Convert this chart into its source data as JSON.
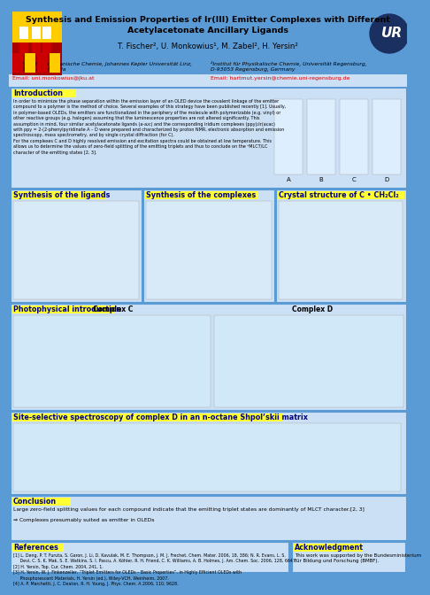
{
  "bg_color": "#5b9bd5",
  "panel_bg": "#cce0f5",
  "panel_bg2": "#ddeefa",
  "title_line1": "Synthesis and Emission Properties of Ir(III) Emitter Complexes with Different",
  "title_line2": "Acetylacetonate Ancillary Ligands",
  "authors": "T. Fischer², U. Monkowius¹, M. Zabel², H. Yersin²",
  "affil1a": "¹Institut für Anorganische Chemie, Johannes Kepler Universität Linz,",
  "affil1b": "A-4040 Linz, Austria",
  "affil2a": "²Institut für Physikalische Chemie, Universität Regensburg,",
  "affil2b": "D-93053 Regensburg, Germany",
  "email1": "Email: uni.monkowius@jku.at",
  "email2": "Email: hartmut.yersin@chemie.uni-regensburg.de",
  "section_intro": "Introduction",
  "intro_text": "In order to minimize the phase separation within the emission layer of an OLED device the covalent linkage of the emitter\ncompound to a polymer is the method of choice. Several examples of this strategy have been published recently [1]. Usually,\nin polymer-based OLEDs, the emitters are functionalized in the periphery of the molecule with polymerizable (e.g. vinyl) or\nother reactive groups (e.g. halogen) assuming that the luminescence properties are not altered significantly. This\nassumption in mind, four similar acetylacetonate ligands (a-a₂c) and the corresponding iridium complexes (ppy)₂Ir(acac)\nwith ppy = 2-(2-phenylpyridinate A – D were prepared and characterized by proton NMR, electronic absorption and emission\nspectroscopy, mass spectrometry, and by single crystal diffraction (for C).\nFor the complexes C and D highly resolved emission and excitation spectra could be obtained at low temperature. This\nallows us to determine the values of zero-field splitting of the emitting triplets and thus to conclude on the ³MLCT/LC\ncharacter of the emitting states [2, 3].",
  "section_synth_lig": "Synthesis of the ligands",
  "section_synth_cpx": "Synthesis of the complexes",
  "section_crystal": "Crystal structure of C • CH₂Cl₂",
  "section_photo": "Photophysical introduction",
  "complex_c": "Complex C",
  "complex_d": "Complex D",
  "section_site": "Site-selective spectroscopy of complex D in an n-octane Shpol’skii matrix",
  "section_conclusion": "Conclusion",
  "conclusion_text": "Large zero-field splitting values for each compound indicate that the emitting triplet states are dominantly of MLCT character.[2, 3]",
  "conclusion_text2": "⇒ Complexes presumably suited as emitter in OLEDs",
  "section_refs": "References",
  "refs_text": "[1] L. Deng, P. T. Furuta, S. Garon, J. Li, D. Kavulak, M. E. Thompson, J. M. J. Frechet, Chem. Mater. 2006, 18, 386; N. R. Evans, L. S.\n     Devi, C. S. K. Mak, S. E. Watkins, S. I. Pascu, A. Köhler, R. H. Friend, C. K. Williams, A. B. Holmes, J. Am. Chem. Soc. 2006, 128, 6647.\n[2] H. Yersin, Top. Cur. Chem. 2004, 241, 1.\n[3] H. Yersin, W. J. Finkenzeller, “Triplet Emitters for OLEDs – Basic Properties”, in Highly Efficient OLEDs with\n     Phosphorescent Materials, H. Yersin (ed.), Wiley-VCH, Weinheim, 2007.\n[4] A. P. Marchetti, J. C. Deaton, R. H. Young, J. Phys. Chem. A 2006, 110, 9628.",
  "section_ack": "Acknowledgment",
  "ack_text": "This work was supported by the Bundesministerium\nfür Bildung und Forschung (BMBF).",
  "yellow": "#ffff33",
  "navy": "#000080",
  "red_link": "#dd0000",
  "white": "#ffffff",
  "black": "#000000",
  "dark_blue_circle": "#1a3060"
}
